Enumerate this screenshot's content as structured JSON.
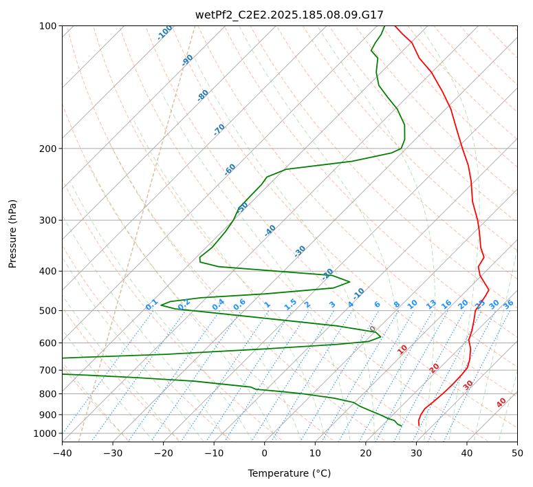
{
  "chart_data": {
    "type": "line",
    "title": "wetPf2_C2E2.2025.185.08.09.G17",
    "xlabel": "Temperature (°C)",
    "ylabel": "Pressure (hPa)",
    "xlim": [
      -40,
      50
    ],
    "ylim": [
      1050,
      100
    ],
    "y_scale": "log",
    "grid": true,
    "xticks": [
      -40,
      -30,
      -20,
      -10,
      0,
      10,
      20,
      30,
      40,
      50
    ],
    "xtick_labels": [
      "−40",
      "−30",
      "−20",
      "−10",
      "0",
      "10",
      "20",
      "30",
      "40",
      "50"
    ],
    "yticks": [
      1000,
      900,
      800,
      700,
      600,
      500,
      400,
      300,
      200,
      100
    ],
    "ytick_labels": [
      "1000",
      "900",
      "800",
      "700",
      "600",
      "500",
      "400",
      "300",
      "200",
      "100"
    ],
    "series": [
      {
        "role": "temperature",
        "color": "#ff0000",
        "values": [
          {
            "p": 960,
            "t": 27.4
          },
          {
            "p": 930,
            "t": 26.2
          },
          {
            "p": 900,
            "t": 25.5
          },
          {
            "p": 870,
            "t": 25.1
          },
          {
            "p": 840,
            "t": 25.4
          },
          {
            "p": 800,
            "t": 25.7
          },
          {
            "p": 760,
            "t": 25.8
          },
          {
            "p": 720,
            "t": 25.7
          },
          {
            "p": 690,
            "t": 25.4
          },
          {
            "p": 660,
            "t": 24.3
          },
          {
            "p": 620,
            "t": 22.3
          },
          {
            "p": 590,
            "t": 20.2
          },
          {
            "p": 560,
            "t": 19.0
          },
          {
            "p": 520,
            "t": 16.9
          },
          {
            "p": 500,
            "t": 15.7
          },
          {
            "p": 480,
            "t": 15.3
          },
          {
            "p": 460,
            "t": 14.8
          },
          {
            "p": 445,
            "t": 14.3
          },
          {
            "p": 430,
            "t": 12.4
          },
          {
            "p": 410,
            "t": 9.7
          },
          {
            "p": 390,
            "t": 7.6
          },
          {
            "p": 370,
            "t": 6.9
          },
          {
            "p": 350,
            "t": 4.3
          },
          {
            "p": 320,
            "t": 0.9
          },
          {
            "p": 300,
            "t": -1.7
          },
          {
            "p": 270,
            "t": -6.4
          },
          {
            "p": 240,
            "t": -10.8
          },
          {
            "p": 220,
            "t": -14.4
          },
          {
            "p": 200,
            "t": -18.9
          },
          {
            "p": 180,
            "t": -23.7
          },
          {
            "p": 160,
            "t": -29.0
          },
          {
            "p": 145,
            "t": -34.1
          },
          {
            "p": 130,
            "t": -40.1
          },
          {
            "p": 120,
            "t": -45.3
          },
          {
            "p": 110,
            "t": -49.8
          },
          {
            "p": 105,
            "t": -53.2
          },
          {
            "p": 100,
            "t": -56.5
          }
        ]
      },
      {
        "role": "dewpoint",
        "color": "#008000",
        "values": [
          {
            "p": 960,
            "t": 24.0
          },
          {
            "p": 950,
            "t": 22.8
          },
          {
            "p": 930,
            "t": 21.4
          },
          {
            "p": 920,
            "t": 19.8
          },
          {
            "p": 900,
            "t": 17.4
          },
          {
            "p": 880,
            "t": 14.7
          },
          {
            "p": 860,
            "t": 12.0
          },
          {
            "p": 840,
            "t": 9.8
          },
          {
            "p": 820,
            "t": 5.1
          },
          {
            "p": 800,
            "t": -1.9
          },
          {
            "p": 790,
            "t": -6.5
          },
          {
            "p": 780,
            "t": -12.1
          },
          {
            "p": 770,
            "t": -13.6
          },
          {
            "p": 760,
            "t": -18.5
          },
          {
            "p": 745,
            "t": -25.8
          },
          {
            "p": 730,
            "t": -38.0
          },
          {
            "p": 720,
            "t": -48.4
          },
          {
            "p": 710,
            "t": -60.6
          },
          {
            "p": 700,
            "t": -70.3
          },
          {
            "p": 690,
            "t": -72.9
          },
          {
            "p": 670,
            "t": -73.0
          },
          {
            "p": 660,
            "t": -64.2
          },
          {
            "p": 650,
            "t": -51.5
          },
          {
            "p": 640,
            "t": -36.8
          },
          {
            "p": 630,
            "t": -27.5
          },
          {
            "p": 620,
            "t": -17.5
          },
          {
            "p": 605,
            "t": -4.9
          },
          {
            "p": 595,
            "t": 0.7
          },
          {
            "p": 580,
            "t": 2.2
          },
          {
            "p": 565,
            "t": 0.3
          },
          {
            "p": 545,
            "t": -8.6
          },
          {
            "p": 525,
            "t": -22.2
          },
          {
            "p": 505,
            "t": -36.5
          },
          {
            "p": 495,
            "t": -44.0
          },
          {
            "p": 485,
            "t": -47.5
          },
          {
            "p": 475,
            "t": -46.4
          },
          {
            "p": 465,
            "t": -41.1
          },
          {
            "p": 455,
            "t": -29.3
          },
          {
            "p": 440,
            "t": -16.8
          },
          {
            "p": 425,
            "t": -14.8
          },
          {
            "p": 410,
            "t": -19.5
          },
          {
            "p": 400,
            "t": -31.4
          },
          {
            "p": 390,
            "t": -43.7
          },
          {
            "p": 380,
            "t": -48.3
          },
          {
            "p": 370,
            "t": -49.3
          },
          {
            "p": 350,
            "t": -48.8
          },
          {
            "p": 320,
            "t": -49.3
          },
          {
            "p": 300,
            "t": -50.0
          },
          {
            "p": 280,
            "t": -51.3
          },
          {
            "p": 260,
            "t": -51.4
          },
          {
            "p": 245,
            "t": -51.5
          },
          {
            "p": 235,
            "t": -51.9
          },
          {
            "p": 225,
            "t": -49.6
          },
          {
            "p": 215,
            "t": -38.2
          },
          {
            "p": 205,
            "t": -32.0
          },
          {
            "p": 200,
            "t": -31.0
          },
          {
            "p": 190,
            "t": -32.1
          },
          {
            "p": 175,
            "t": -35.0
          },
          {
            "p": 160,
            "t": -39.6
          },
          {
            "p": 150,
            "t": -43.7
          },
          {
            "p": 140,
            "t": -47.9
          },
          {
            "p": 130,
            "t": -51.0
          },
          {
            "p": 120,
            "t": -53.5
          },
          {
            "p": 115,
            "t": -56.3
          },
          {
            "p": 110,
            "t": -57.0
          },
          {
            "p": 105,
            "t": -57.5
          },
          {
            "p": 100,
            "t": -58.5
          }
        ]
      }
    ],
    "skew_isotherm_labels": {
      "color": "#1f77b4",
      "values": [
        -100,
        -90,
        -80,
        -70,
        -60,
        -50,
        -40,
        -30,
        -20,
        -10
      ]
    },
    "mixing_ratio_labels": {
      "color": "#1e90ff",
      "values": [
        "0.1",
        "0.2",
        "0.4",
        "0.6",
        "1",
        "1.5",
        "2",
        "3",
        "4",
        "6",
        "8",
        "10",
        "13",
        "16",
        "20",
        "25",
        "30",
        "36"
      ]
    },
    "warm_isotherm_labels": [
      {
        "value": "0",
        "color": "#808080"
      },
      {
        "value": "10",
        "color": "#d62728"
      },
      {
        "value": "20",
        "color": "#d62728"
      },
      {
        "value": "30",
        "color": "#d62728"
      },
      {
        "value": "40",
        "color": "#d62728"
      }
    ],
    "background_lines": {
      "isotherms": "#a9a9a9",
      "dry_adiabats": "#ff8c69",
      "moist_adiabats": "#66bb6a",
      "mixing_ratio": "#1e90ff",
      "lcl_guide": "#d2b48c"
    }
  }
}
